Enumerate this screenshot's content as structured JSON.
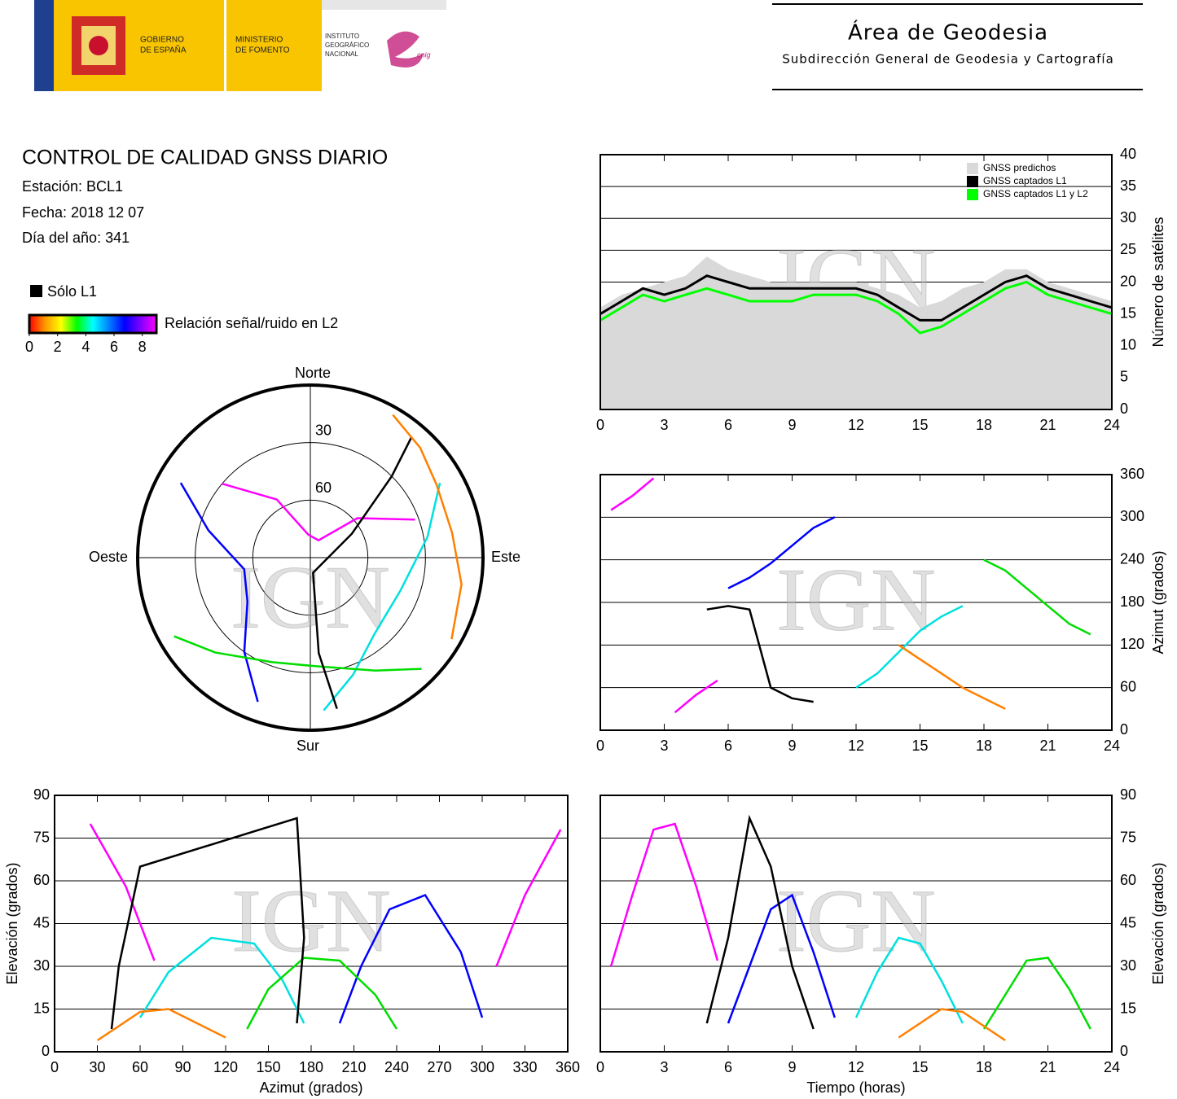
{
  "header": {
    "government": [
      "GOBIERNO",
      "DE ESPAÑA"
    ],
    "ministry": [
      "MINISTERIO",
      "DE FOMENTO"
    ],
    "institute": [
      "INSTITUTO",
      "GEOGRÁFICO",
      "NACIONAL"
    ],
    "cnig": "cnig",
    "title": "Área de Geodesia",
    "subtitle": "Subdirección General de Geodesia y Cartografía"
  },
  "report": {
    "title": "CONTROL DE CALIDAD GNSS DIARIO",
    "station": "Estación: BCL1",
    "date": "Fecha: 2018 12 07",
    "day_of_year": "Día del año: 341"
  },
  "legend": {
    "l1_only": "Sólo L1",
    "l1_color": "#000000",
    "snr_label": "Relación señal/ruido en L2",
    "snr_lim": [
      0,
      9
    ],
    "snr_ticks": [
      0,
      2,
      4,
      6,
      8
    ],
    "snr_colors": [
      "#ff0000",
      "#ff9900",
      "#ffff00",
      "#00ff00",
      "#00ffff",
      "#0080ff",
      "#0000ff",
      "#8000ff",
      "#ff00ff"
    ]
  },
  "watermark": "IGN",
  "chart_data": [
    {
      "type": "line",
      "ylabel": "Número de satélites",
      "x": [
        0,
        1,
        2,
        3,
        4,
        5,
        6,
        7,
        8,
        9,
        10,
        11,
        12,
        13,
        14,
        15,
        16,
        17,
        18,
        19,
        20,
        21,
        22,
        23,
        24
      ],
      "series": [
        {
          "name": "GNSS predichos",
          "color": "#d9d9d9",
          "style": "area",
          "values": [
            16,
            18,
            19,
            20,
            21,
            24,
            22,
            21,
            20,
            20,
            20,
            20,
            20,
            19,
            18,
            16,
            17,
            19,
            20,
            22,
            22,
            20,
            19,
            18,
            17
          ]
        },
        {
          "name": "GNSS captados L1",
          "color": "#000000",
          "style": "line",
          "values": [
            15,
            17,
            19,
            18,
            19,
            21,
            20,
            19,
            19,
            19,
            19,
            19,
            19,
            18,
            16,
            14,
            14,
            16,
            18,
            20,
            21,
            19,
            18,
            17,
            16
          ]
        },
        {
          "name": "GNSS captados L1 y L2",
          "color": "#00ff00",
          "style": "line",
          "values": [
            14,
            16,
            18,
            17,
            18,
            19,
            18,
            17,
            17,
            17,
            18,
            18,
            18,
            17,
            15,
            12,
            13,
            15,
            17,
            19,
            20,
            18,
            17,
            16,
            15
          ]
        }
      ],
      "xlim": [
        0,
        24
      ],
      "xticks": [
        0,
        3,
        6,
        9,
        12,
        15,
        18,
        21,
        24
      ],
      "ylim": [
        0,
        40
      ],
      "yticks": [
        0,
        5,
        10,
        15,
        20,
        25,
        30,
        35,
        40
      ],
      "grid": true
    },
    {
      "type": "polar",
      "north": "Norte",
      "south": "Sur",
      "east": "Este",
      "west": "Oeste",
      "rlim": [
        0,
        90
      ],
      "rticks": [
        30,
        60
      ],
      "series": [
        {
          "color": "#ff00ff",
          "azimuth": [
            310,
            330,
            355,
            25,
            50,
            70
          ],
          "elevation": [
            30,
            55,
            78,
            80,
            58,
            32
          ]
        },
        {
          "color": "#0000ff",
          "azimuth": [
            200,
            215,
            235,
            260,
            285,
            300
          ],
          "elevation": [
            10,
            30,
            50,
            55,
            35,
            12
          ]
        },
        {
          "color": "#00e0e0",
          "azimuth": [
            60,
            80,
            110,
            140,
            160,
            175
          ],
          "elevation": [
            12,
            28,
            40,
            38,
            25,
            10
          ]
        },
        {
          "color": "#00dd00",
          "azimuth": [
            240,
            225,
            200,
            175,
            150,
            135
          ],
          "elevation": [
            8,
            20,
            32,
            33,
            22,
            8
          ]
        },
        {
          "color": "#000000",
          "azimuth": [
            170,
            175,
            170,
            60,
            45,
            40
          ],
          "elevation": [
            10,
            40,
            82,
            65,
            30,
            8
          ]
        },
        {
          "color": "#ff8000",
          "azimuth": [
            120,
            100,
            80,
            60,
            45,
            30
          ],
          "elevation": [
            5,
            10,
            15,
            14,
            9,
            4
          ]
        }
      ]
    },
    {
      "type": "scatter",
      "ylabel": "Azimut (grados)",
      "series": [
        {
          "color": "#ff00ff",
          "x": [
            0.5,
            1.5,
            2.5,
            null,
            3.5,
            4.5,
            5.5
          ],
          "values": [
            310,
            330,
            355,
            null,
            25,
            50,
            70
          ]
        },
        {
          "color": "#0000ff",
          "x": [
            6,
            7,
            8,
            9,
            10,
            11
          ],
          "values": [
            200,
            215,
            235,
            260,
            285,
            300
          ]
        },
        {
          "color": "#00e0e0",
          "x": [
            12,
            13,
            14,
            15,
            16,
            17
          ],
          "values": [
            60,
            80,
            110,
            140,
            160,
            175
          ]
        },
        {
          "color": "#00dd00",
          "x": [
            18,
            19,
            20,
            21,
            22,
            23
          ],
          "values": [
            240,
            225,
            200,
            175,
            150,
            135
          ]
        },
        {
          "color": "#000000",
          "x": [
            5,
            6,
            7,
            8,
            9,
            10
          ],
          "values": [
            170,
            175,
            170,
            60,
            45,
            40
          ]
        },
        {
          "color": "#ff8000",
          "x": [
            14,
            15,
            16,
            17,
            18,
            19
          ],
          "values": [
            120,
            100,
            80,
            60,
            45,
            30
          ]
        }
      ],
      "xlim": [
        0,
        24
      ],
      "xticks": [
        0,
        3,
        6,
        9,
        12,
        15,
        18,
        21,
        24
      ],
      "ylim": [
        0,
        360
      ],
      "yticks": [
        0,
        60,
        120,
        180,
        240,
        300,
        360
      ],
      "grid": true
    },
    {
      "type": "scatter",
      "xlabel": "Azimut (grados)",
      "ylabel": "Elevación (grados)",
      "series": [
        {
          "color": "#ff00ff",
          "x": [
            310,
            330,
            355,
            null,
            25,
            50,
            70
          ],
          "values": [
            30,
            55,
            78,
            null,
            80,
            58,
            32
          ]
        },
        {
          "color": "#0000ff",
          "x": [
            200,
            215,
            235,
            260,
            285,
            300
          ],
          "values": [
            10,
            30,
            50,
            55,
            35,
            12
          ]
        },
        {
          "color": "#00e0e0",
          "x": [
            60,
            80,
            110,
            140,
            160,
            175
          ],
          "values": [
            12,
            28,
            40,
            38,
            25,
            10
          ]
        },
        {
          "color": "#00dd00",
          "x": [
            240,
            225,
            200,
            175,
            150,
            135
          ],
          "values": [
            8,
            20,
            32,
            33,
            22,
            8
          ]
        },
        {
          "color": "#000000",
          "x": [
            170,
            175,
            170,
            60,
            45,
            40
          ],
          "values": [
            10,
            40,
            82,
            65,
            30,
            8
          ]
        },
        {
          "color": "#ff8000",
          "x": [
            120,
            100,
            80,
            60,
            45,
            30
          ],
          "values": [
            5,
            10,
            15,
            14,
            9,
            4
          ]
        }
      ],
      "xlim": [
        0,
        360
      ],
      "xticks": [
        0,
        30,
        60,
        90,
        120,
        150,
        180,
        210,
        240,
        270,
        300,
        330,
        360
      ],
      "ylim": [
        0,
        90
      ],
      "yticks": [
        0,
        15,
        30,
        45,
        60,
        75,
        90
      ],
      "grid": true
    },
    {
      "type": "scatter",
      "xlabel": "Tiempo (horas)",
      "ylabel": "Elevación (grados)",
      "series": [
        {
          "color": "#ff00ff",
          "x": [
            0.5,
            1.5,
            2.5,
            3.5,
            4.5,
            5.5
          ],
          "values": [
            30,
            55,
            78,
            80,
            58,
            32
          ]
        },
        {
          "color": "#0000ff",
          "x": [
            6,
            7,
            8,
            9,
            10,
            11
          ],
          "values": [
            10,
            30,
            50,
            55,
            35,
            12
          ]
        },
        {
          "color": "#00e0e0",
          "x": [
            12,
            13,
            14,
            15,
            16,
            17
          ],
          "values": [
            12,
            28,
            40,
            38,
            25,
            10
          ]
        },
        {
          "color": "#00dd00",
          "x": [
            18,
            19,
            20,
            21,
            22,
            23
          ],
          "values": [
            8,
            20,
            32,
            33,
            22,
            8
          ]
        },
        {
          "color": "#000000",
          "x": [
            5,
            6,
            7,
            8,
            9,
            10
          ],
          "values": [
            10,
            40,
            82,
            65,
            30,
            8
          ]
        },
        {
          "color": "#ff8000",
          "x": [
            14,
            15,
            16,
            17,
            18,
            19
          ],
          "values": [
            5,
            10,
            15,
            14,
            9,
            4
          ]
        }
      ],
      "xlim": [
        0,
        24
      ],
      "xticks": [
        0,
        3,
        6,
        9,
        12,
        15,
        18,
        21,
        24
      ],
      "ylim": [
        0,
        90
      ],
      "yticks": [
        0,
        15,
        30,
        45,
        60,
        75,
        90
      ],
      "grid": true
    }
  ]
}
